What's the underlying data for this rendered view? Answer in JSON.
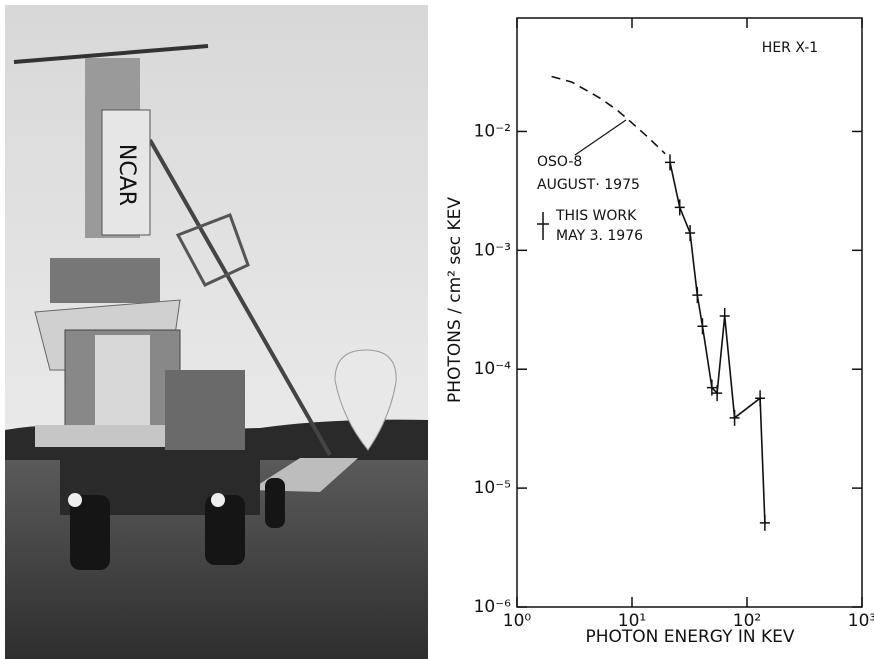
{
  "chart_data": {
    "type": "line",
    "xscale": "log",
    "yscale": "log",
    "xlabel": "PHOTON ENERGY IN KEV",
    "ylabel": "PHOTONS / cm² sec KEV",
    "xlim": [
      1,
      1000
    ],
    "ylim": [
      1e-06,
      0.09
    ],
    "xticks": [
      {
        "value": 1,
        "label": "10⁰"
      },
      {
        "value": 10,
        "label": "10¹"
      },
      {
        "value": 100,
        "label": "10²"
      },
      {
        "value": 1000,
        "label": "10³"
      }
    ],
    "yticks": [
      {
        "value": 1e-06,
        "label": "10⁻⁶"
      },
      {
        "value": 1e-05,
        "label": "10⁻⁵"
      },
      {
        "value": 0.0001,
        "label": "10⁻⁴"
      },
      {
        "value": 0.001,
        "label": "10⁻³"
      },
      {
        "value": 0.01,
        "label": "10⁻²"
      }
    ],
    "series": [
      {
        "color": "#111111",
        "style": "dashed",
        "x": [
          2,
          3,
          5.3,
          7.5,
          9.6,
          14,
          19.4
        ],
        "values": [
          0.029,
          0.026,
          0.019,
          0.015,
          0.0122,
          0.0088,
          0.0065
        ]
      },
      {
        "color": "#111111",
        "style": "solid",
        "marker": "cross",
        "x": [
          21.4,
          26,
          32,
          37,
          41,
          49.5,
          55,
          64,
          78,
          130,
          143
        ],
        "values": [
          0.0055,
          0.0023,
          0.0014,
          0.00042,
          0.00023,
          7e-05,
          6.3e-05,
          0.00028,
          3.9e-05,
          5.7e-05,
          5.1e-06
        ]
      }
    ],
    "annotations": [
      {
        "text": "HER X-1"
      },
      {
        "text": "OSO-8"
      },
      {
        "text": "AUGUST· 1975"
      },
      {
        "text": "THIS WORK"
      },
      {
        "text": "MAY 3. 1976"
      }
    ]
  }
}
